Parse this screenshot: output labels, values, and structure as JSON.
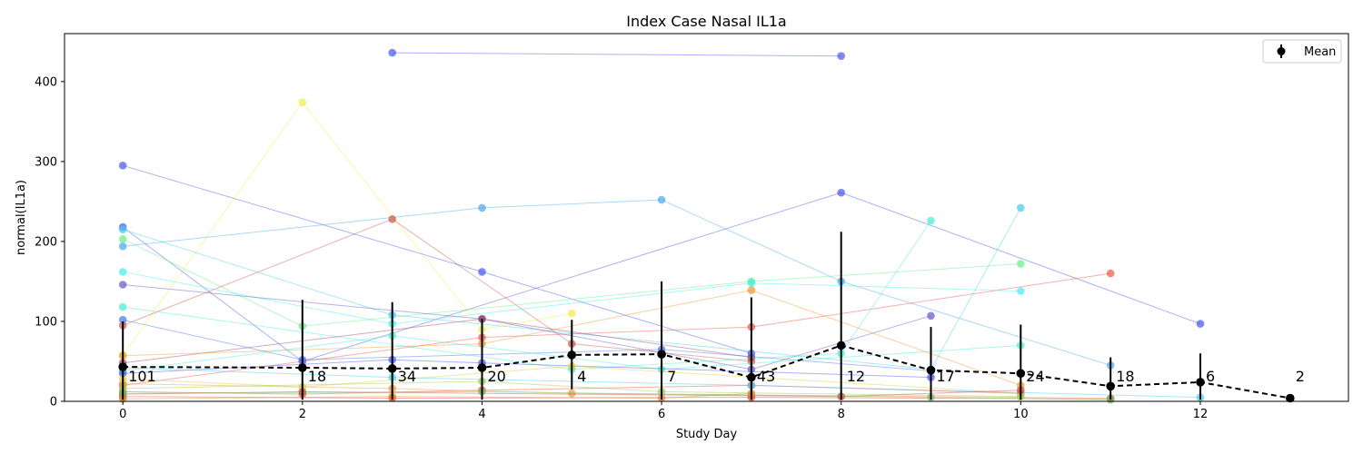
{
  "chart_data": {
    "type": "line",
    "title": "Index Case Nasal IL1a",
    "xlabel": "Study Day",
    "ylabel": "normal(IL1a)",
    "xlim": [
      -0.65,
      13.65
    ],
    "ylim": [
      0,
      460
    ],
    "x_ticks": [
      0,
      2,
      4,
      6,
      8,
      10,
      12
    ],
    "y_ticks": [
      0,
      100,
      200,
      300,
      400
    ],
    "legend": {
      "position": "top-right",
      "entries": [
        "Mean"
      ]
    },
    "mean_series": {
      "name": "Mean",
      "x": [
        0,
        2,
        3,
        4,
        5,
        6,
        7,
        8,
        9,
        10,
        11,
        12,
        13
      ],
      "y": [
        43,
        42,
        41,
        42,
        58,
        59,
        30,
        70,
        39,
        35,
        19,
        24,
        4
      ],
      "err_low": [
        2,
        2,
        2,
        2,
        15,
        2,
        2,
        2,
        2,
        2,
        2,
        2,
        2
      ],
      "err_high": [
        100,
        127,
        124,
        103,
        102,
        150,
        130,
        212,
        93,
        96,
        55,
        60,
        4
      ],
      "counts": [
        "101",
        "18",
        "34",
        "20",
        "4",
        "7",
        "43",
        "12",
        "17",
        "24",
        "18",
        "6",
        "2"
      ]
    },
    "subjects": [
      {
        "color": "#4455ee",
        "x": [
          3,
          8
        ],
        "y": [
          436,
          432
        ]
      },
      {
        "color": "#eeee44",
        "x": [
          0,
          2,
          4,
          5
        ],
        "y": [
          58,
          374,
          90,
          110
        ]
      },
      {
        "color": "#4455ee",
        "x": [
          0,
          4,
          7
        ],
        "y": [
          295,
          162,
          60
        ]
      },
      {
        "color": "#44aaee",
        "x": [
          0,
          4,
          6,
          8,
          11
        ],
        "y": [
          194,
          242,
          252,
          150,
          45
        ]
      },
      {
        "color": "#4455ee",
        "x": [
          0,
          2,
          8,
          12
        ],
        "y": [
          218,
          50,
          261,
          97
        ]
      },
      {
        "color": "#44ccee",
        "x": [
          0,
          3,
          9,
          10
        ],
        "y": [
          215,
          108,
          40,
          242
        ]
      },
      {
        "color": "#cc5544",
        "x": [
          0,
          3,
          5,
          7
        ],
        "y": [
          95,
          228,
          72,
          50
        ]
      },
      {
        "color": "#66ee88",
        "x": [
          0,
          2,
          7,
          10
        ],
        "y": [
          203,
          94,
          150,
          172
        ]
      },
      {
        "color": "#ee5544",
        "x": [
          0,
          4,
          7,
          11
        ],
        "y": [
          20,
          80,
          93,
          160
        ]
      },
      {
        "color": "#44eeee",
        "x": [
          0,
          3,
          7,
          10
        ],
        "y": [
          162,
          97,
          148,
          138
        ]
      },
      {
        "color": "#6655cc",
        "x": [
          0,
          4,
          7,
          9
        ],
        "y": [
          146,
          103,
          40,
          107
        ]
      },
      {
        "color": "#44eecc",
        "x": [
          0,
          5,
          8,
          9
        ],
        "y": [
          118,
          40,
          60,
          226
        ]
      },
      {
        "color": "#994466",
        "x": [
          0,
          4,
          7
        ],
        "y": [
          48,
          103,
          55
        ]
      },
      {
        "color": "#ee9933",
        "x": [
          0,
          4,
          7,
          10
        ],
        "y": [
          57,
          72,
          139,
          20
        ]
      },
      {
        "color": "#4477ee",
        "x": [
          0,
          2,
          6,
          9
        ],
        "y": [
          102,
          52,
          65,
          38
        ]
      },
      {
        "color": "#44eecc",
        "x": [
          0,
          3,
          6,
          10
        ],
        "y": [
          38,
          82,
          40,
          70
        ]
      },
      {
        "color": "#ee4433",
        "x": [
          0,
          2,
          4,
          7,
          10
        ],
        "y": [
          12,
          9,
          14,
          20,
          10
        ]
      },
      {
        "color": "#ee9933",
        "x": [
          0,
          3,
          5,
          7,
          11
        ],
        "y": [
          22,
          16,
          10,
          8,
          4
        ]
      },
      {
        "color": "#4455ee",
        "x": [
          0,
          3,
          4,
          9
        ],
        "y": [
          35,
          52,
          48,
          30
        ]
      },
      {
        "color": "#ddcc33",
        "x": [
          0,
          2,
          5,
          10
        ],
        "y": [
          28,
          18,
          44,
          10
        ]
      },
      {
        "color": "#ee4433",
        "x": [
          0,
          3,
          7,
          11
        ],
        "y": [
          6,
          4,
          5,
          3
        ]
      },
      {
        "color": "#99cc44",
        "x": [
          0,
          4,
          6,
          10
        ],
        "y": [
          16,
          25,
          12,
          6
        ]
      },
      {
        "color": "#44ccee",
        "x": [
          0,
          3,
          7,
          12
        ],
        "y": [
          42,
          30,
          20,
          5
        ]
      },
      {
        "color": "#cc4444",
        "x": [
          0,
          2,
          8,
          10
        ],
        "y": [
          9,
          12,
          6,
          14
        ]
      },
      {
        "color": "#66cc66",
        "x": [
          0,
          4,
          9,
          11
        ],
        "y": [
          10,
          12,
          5,
          2
        ]
      },
      {
        "color": "#dd8833",
        "x": [
          0,
          3,
          6,
          7
        ],
        "y": [
          3,
          6,
          4,
          10
        ]
      }
    ]
  }
}
